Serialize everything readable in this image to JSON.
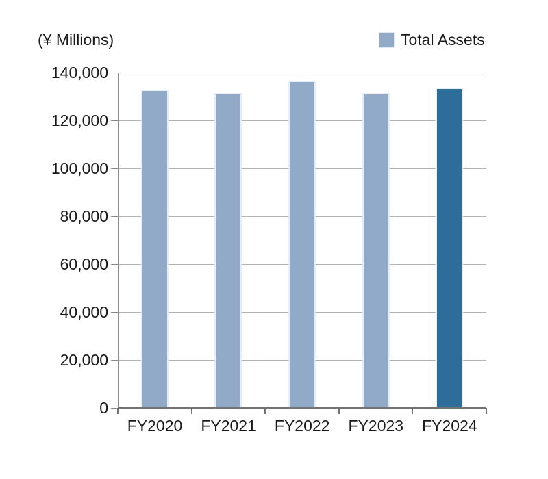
{
  "chart_data": {
    "type": "bar",
    "title": "",
    "unit_label": "(¥ Millions)",
    "legend": [
      {
        "label": "Total Assets",
        "color": "#91aac8"
      }
    ],
    "legend_position": "top-right",
    "categories": [
      "FY2020",
      "FY2021",
      "FY2022",
      "FY2023",
      "FY2024"
    ],
    "series": [
      {
        "name": "Total Assets",
        "values": [
          133000,
          131400,
          136500,
          131300,
          133700
        ],
        "bar_colors": [
          "#91aac8",
          "#91aac8",
          "#91aac8",
          "#91aac8",
          "#2e6d99"
        ]
      }
    ],
    "xlabel": "",
    "ylabel": "(¥ Millions)",
    "ylim": [
      0,
      140000
    ],
    "ytick_step": 20000,
    "ytick_labels": [
      "0",
      "20,000",
      "40,000",
      "60,000",
      "80,000",
      "100,000",
      "120,000",
      "140,000"
    ],
    "grid": true
  },
  "colors": {
    "background": "#ffffff",
    "bar_default": "#91aac8",
    "bar_highlight": "#2e6d99",
    "bar_border": "#e7edf4",
    "gridline": "#b3b3b3",
    "axis": "#737373",
    "text": "#1a1a1a"
  }
}
